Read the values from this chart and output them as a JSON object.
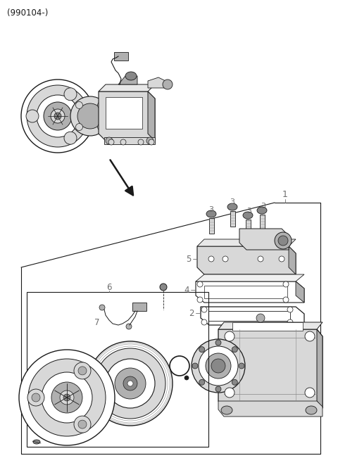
{
  "title": "(990104-)",
  "bg_color": "#ffffff",
  "line_color": "#1a1a1a",
  "gray_light": "#d8d8d8",
  "gray_mid": "#b0b0b0",
  "gray_dark": "#888888",
  "label_color": "#6e6e6e",
  "fig_width": 4.8,
  "fig_height": 6.68,
  "dpi": 100
}
